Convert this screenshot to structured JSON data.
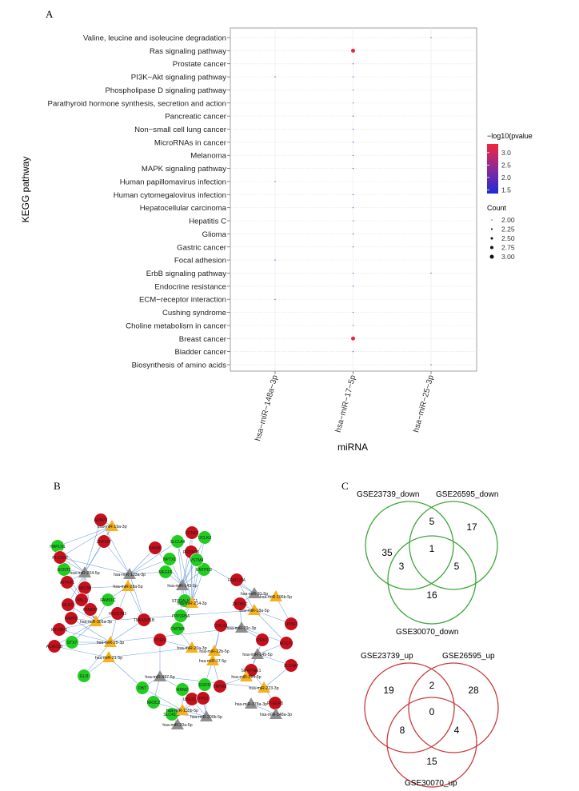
{
  "panel_labels": {
    "a": "A",
    "b": "B",
    "c": "C"
  },
  "chart_data": {
    "type": "scatter",
    "ylabel": "KEGG pathway",
    "xlabel": "miRNA",
    "x_categories": [
      "hsa−miR−148a−3p",
      "hsa−miR−17−5p",
      "hsa−miR−25−3p"
    ],
    "y_categories": [
      "Valine, leucine and isoleucine degradation",
      "Ras signaling pathway",
      "Prostate cancer",
      "PI3K−Akt signaling pathway",
      "Phospholipase D signaling pathway",
      "Parathyroid hormone synthesis, secretion and action",
      "Pancreatic cancer",
      "Non−small cell lung cancer",
      "MicroRNAs in cancer",
      "Melanoma",
      "MAPK signaling pathway",
      "Human papillomavirus infection",
      "Human cytomegalovirus infection",
      "Hepatocellular carcinoma",
      "Hepatitis C",
      "Glioma",
      "Gastric cancer",
      "Focal adhesion",
      "ErbB signaling pathway",
      "Endocrine resistance",
      "ECM−receptor interaction",
      "Cushing syndrome",
      "Choline metabolism in cancer",
      "Breast cancer",
      "Bladder cancer",
      "Biosynthesis of amino acids"
    ],
    "points": [
      {
        "pathway": 0,
        "mirna": 2,
        "count": 2,
        "log10p": 1.4
      },
      {
        "pathway": 1,
        "mirna": 1,
        "count": 3,
        "log10p": 3.3
      },
      {
        "pathway": 2,
        "mirna": 1,
        "count": 2,
        "log10p": 1.4
      },
      {
        "pathway": 3,
        "mirna": 0,
        "count": 2,
        "log10p": 1.4
      },
      {
        "pathway": 3,
        "mirna": 1,
        "count": 2,
        "log10p": 1.4
      },
      {
        "pathway": 4,
        "mirna": 1,
        "count": 2,
        "log10p": 1.4
      },
      {
        "pathway": 5,
        "mirna": 1,
        "count": 2,
        "log10p": 1.4
      },
      {
        "pathway": 6,
        "mirna": 1,
        "count": 2,
        "log10p": 1.4
      },
      {
        "pathway": 7,
        "mirna": 1,
        "count": 2,
        "log10p": 1.4
      },
      {
        "pathway": 8,
        "mirna": 1,
        "count": 2,
        "log10p": 1.4
      },
      {
        "pathway": 9,
        "mirna": 1,
        "count": 2,
        "log10p": 1.4
      },
      {
        "pathway": 10,
        "mirna": 1,
        "count": 2,
        "log10p": 1.4
      },
      {
        "pathway": 11,
        "mirna": 0,
        "count": 2,
        "log10p": 1.4
      },
      {
        "pathway": 12,
        "mirna": 1,
        "count": 2,
        "log10p": 1.4
      },
      {
        "pathway": 13,
        "mirna": 1,
        "count": 2,
        "log10p": 1.4
      },
      {
        "pathway": 14,
        "mirna": 1,
        "count": 2,
        "log10p": 1.4
      },
      {
        "pathway": 15,
        "mirna": 1,
        "count": 2,
        "log10p": 1.4
      },
      {
        "pathway": 16,
        "mirna": 1,
        "count": 2,
        "log10p": 1.4
      },
      {
        "pathway": 17,
        "mirna": 0,
        "count": 2,
        "log10p": 1.4
      },
      {
        "pathway": 18,
        "mirna": 1,
        "count": 2,
        "log10p": 1.4
      },
      {
        "pathway": 18,
        "mirna": 2,
        "count": 2,
        "log10p": 1.4
      },
      {
        "pathway": 19,
        "mirna": 1,
        "count": 2,
        "log10p": 1.4
      },
      {
        "pathway": 20,
        "mirna": 0,
        "count": 2,
        "log10p": 1.4
      },
      {
        "pathway": 21,
        "mirna": 1,
        "count": 2,
        "log10p": 1.4
      },
      {
        "pathway": 22,
        "mirna": 1,
        "count": 2,
        "log10p": 1.4
      },
      {
        "pathway": 23,
        "mirna": 1,
        "count": 3,
        "log10p": 3.3
      },
      {
        "pathway": 24,
        "mirna": 1,
        "count": 2,
        "log10p": 1.4
      },
      {
        "pathway": 25,
        "mirna": 2,
        "count": 2,
        "log10p": 1.4
      }
    ],
    "color_legend": {
      "title": "−log10(pvalue",
      "ticks": [
        "3.0",
        "2.5",
        "2.0",
        "1.5"
      ],
      "tick_values": [
        3.0,
        2.5,
        2.0,
        1.5
      ],
      "range": [
        1.35,
        3.35
      ],
      "low_color": "#1f2bd6",
      "high_color": "#f2253c"
    },
    "size_legend": {
      "title": "Count",
      "labels": [
        "2.00",
        "2.25",
        "2.50",
        "2.75",
        "3.00"
      ],
      "values": [
        2.0,
        2.25,
        2.5,
        2.75,
        3.0
      ]
    },
    "grid": true,
    "grid_color": "#ececec"
  },
  "network": {
    "edge_color": "#5a8fd6",
    "node_colors": {
      "up": "#c8101c",
      "down": "#22cc22",
      "mirna_up": "#f5b21a",
      "mirna_down": "#8e8e8e"
    },
    "mirna_nodes": [
      {
        "label": "hsa-miR-19a-3p",
        "kind": "up"
      },
      {
        "label": "hsa-miR-204-5p",
        "kind": "down"
      },
      {
        "label": "hsa-miR-133a-3p",
        "kind": "down"
      },
      {
        "label": "hsa-miR-28a-5p",
        "kind": "up"
      },
      {
        "label": "hsa-miR-143-3p",
        "kind": "down"
      },
      {
        "label": "hsa-miR-214-3p",
        "kind": "up"
      },
      {
        "label": "hsa-miR-31-5p",
        "kind": "down"
      },
      {
        "label": "hsa-miR-196b-5p",
        "kind": "up"
      },
      {
        "label": "hsa-miR-18a-5p",
        "kind": "up"
      },
      {
        "label": "hsa-miR-301a-3p",
        "kind": "up"
      },
      {
        "label": "hsa-miR-29c-3p",
        "kind": "down"
      },
      {
        "label": "hsa-miR-25-3p",
        "kind": "up"
      },
      {
        "label": "hsa-miR-21-5p",
        "kind": "up"
      },
      {
        "label": "hsa-miR-20a-3p",
        "kind": "up"
      },
      {
        "label": "hsa-miR-22b-5p",
        "kind": "up"
      },
      {
        "label": "hsa-miR-17-5p",
        "kind": "up"
      },
      {
        "label": "hsa-miR-145-5p",
        "kind": "down"
      },
      {
        "label": "hsa-miR-224-5p",
        "kind": "up"
      },
      {
        "label": "hsa-miR-223-3p",
        "kind": "up"
      },
      {
        "label": "hsa-miR-497-5p",
        "kind": "down"
      },
      {
        "label": "hsa-miR-378a-3p",
        "kind": "down"
      },
      {
        "label": "hsa-miR-148a-3p",
        "kind": "down"
      },
      {
        "label": "hsa-miR-135b-5p",
        "kind": "up"
      },
      {
        "label": "hsa-miR-200b-5p",
        "kind": "down"
      },
      {
        "label": "hsa-miR-20a-5p",
        "kind": "down"
      }
    ],
    "gene_nodes": [
      {
        "label": "ADNP2",
        "kind": "up"
      },
      {
        "label": "NPTX1",
        "kind": "down"
      },
      {
        "label": "CCNE2",
        "kind": "up"
      },
      {
        "label": "SLC1A4",
        "kind": "down"
      },
      {
        "label": "PRDM16",
        "kind": "up"
      },
      {
        "label": "ENTPD3",
        "kind": "down"
      },
      {
        "label": "ZNF697",
        "kind": "up"
      },
      {
        "label": "DCLK2",
        "kind": "down"
      },
      {
        "label": "BAMBI",
        "kind": "up"
      },
      {
        "label": "VSTM4",
        "kind": "down"
      },
      {
        "label": "HAPLN1",
        "kind": "down"
      },
      {
        "label": "GCNT2",
        "kind": "down"
      },
      {
        "label": "PLCXD3",
        "kind": "up"
      },
      {
        "label": "MEGF6",
        "kind": "down"
      },
      {
        "label": "ATP6V1",
        "kind": "up"
      },
      {
        "label": "ABCA8",
        "kind": "up"
      },
      {
        "label": "MLEC",
        "kind": "up"
      },
      {
        "label": "ABL2",
        "kind": "up"
      },
      {
        "label": "PARP8",
        "kind": "up"
      },
      {
        "label": "FAM83F",
        "kind": "up"
      },
      {
        "label": "IGF2BP3",
        "kind": "up"
      },
      {
        "label": "ACADSB",
        "kind": "up"
      },
      {
        "label": "FAM91C",
        "kind": "down"
      },
      {
        "label": "FAM126A",
        "kind": "up"
      },
      {
        "label": "HSD17B2",
        "kind": "up"
      },
      {
        "label": "STX7",
        "kind": "down"
      },
      {
        "label": "CMTM4",
        "kind": "down"
      },
      {
        "label": "TMEM181B",
        "kind": "up"
      },
      {
        "label": "ST6GALNAC1",
        "kind": "down"
      },
      {
        "label": "PPP2R5A",
        "kind": "down"
      },
      {
        "label": "CDC42",
        "kind": "up"
      },
      {
        "label": "EGFR",
        "kind": "down"
      },
      {
        "label": "UBE2QL1",
        "kind": "up"
      },
      {
        "label": "SLC43A2",
        "kind": "down"
      },
      {
        "label": "TP53",
        "kind": "up"
      },
      {
        "label": "PTGER3",
        "kind": "up"
      },
      {
        "label": "SERPINE1",
        "kind": "up"
      },
      {
        "label": "GLI3",
        "kind": "down"
      },
      {
        "label": "NR3C2",
        "kind": "down"
      },
      {
        "label": "DBT",
        "kind": "down"
      },
      {
        "label": "PTEN",
        "kind": "up"
      },
      {
        "label": "PDK3",
        "kind": "up"
      },
      {
        "label": "ADCY2",
        "kind": "up"
      },
      {
        "label": "LPPR1",
        "kind": "up"
      },
      {
        "label": "RRM2",
        "kind": "down"
      },
      {
        "label": "ZBTB5C",
        "kind": "up"
      },
      {
        "label": "SLC4A7",
        "kind": "up"
      },
      {
        "label": "TRPM2",
        "kind": "up"
      }
    ]
  },
  "venn_down": {
    "set_labels": [
      "GSE23739_down",
      "GSE26595_down",
      "GSE30070_down"
    ],
    "values": [
      "35",
      "5",
      "17",
      "1",
      "3",
      "5",
      "16"
    ],
    "color": "#3fa63a"
  },
  "venn_up": {
    "set_labels": [
      "GSE23739_up",
      "GSE26595_up",
      "GSE30070_up"
    ],
    "values": [
      "19",
      "2",
      "28",
      "0",
      "8",
      "4",
      "15"
    ],
    "color": "#c93a3a"
  }
}
